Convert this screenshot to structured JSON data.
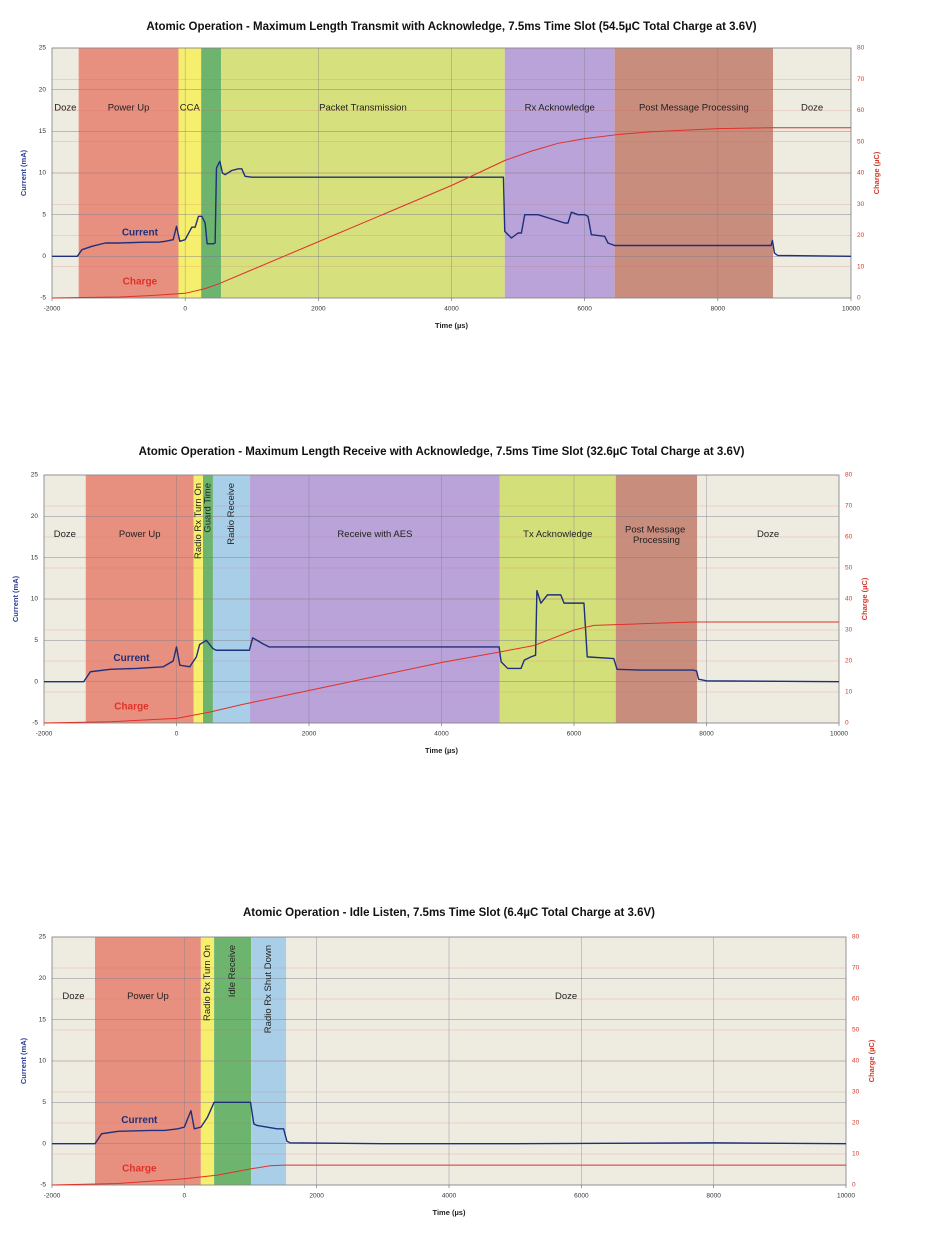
{
  "chart_data": [
    {
      "type": "line",
      "title": "Atomic Operation - Maximum Length Transmit with Acknowledge, 7.5ms Time Slot (54.5µC Total Charge at 3.6V)",
      "xlabel": "Time (µs)",
      "ylabel": "Current (mA)",
      "y2label": "Charge (µC)",
      "xlim": [
        -2000,
        10000
      ],
      "xticks": [
        -2000,
        0,
        2000,
        4000,
        6000,
        8000,
        10000
      ],
      "ylim": [
        -5,
        25
      ],
      "yticks": [
        -5,
        0,
        5,
        10,
        15,
        20,
        25
      ],
      "y2lim": [
        0,
        80
      ],
      "y2ticks": [
        0,
        10,
        20,
        30,
        40,
        50,
        60,
        70,
        80
      ],
      "grid": true,
      "regions": [
        {
          "label": "Doze",
          "start": -2000,
          "end": -1600,
          "color": "#eeebe0"
        },
        {
          "label": "Power Up",
          "start": -1600,
          "end": -100,
          "color": "#e8907f"
        },
        {
          "label": "CCA",
          "start": -100,
          "end": 240,
          "color": "#f6ef6e"
        },
        {
          "start": 240,
          "end": 540,
          "color": "#6db46e"
        },
        {
          "label": "Packet Transmission",
          "start": 540,
          "end": 4800,
          "color": "#d6e07c"
        },
        {
          "label": "Rx Acknowledge",
          "start": 4800,
          "end": 6450,
          "color": "#b9a3d9"
        },
        {
          "label": "Post Message Processing",
          "start": 6450,
          "end": 8830,
          "color": "#c98d7e"
        },
        {
          "label": "Doze",
          "start": 8830,
          "end": 10000,
          "color": "#eeebe0"
        }
      ],
      "series": [
        {
          "name": "Current",
          "color": "#1f2f7a",
          "x": [
            -2000,
            -1620,
            -1550,
            -1400,
            -1200,
            -1000,
            -600,
            -400,
            -300,
            -180,
            -130,
            -80,
            0,
            100,
            150,
            200,
            250,
            300,
            330,
            380,
            420,
            450,
            470,
            520,
            560,
            600,
            700,
            800,
            850,
            900,
            1000,
            2000,
            3000,
            4000,
            4780,
            4800,
            4900,
            5000,
            5050,
            5100,
            5300,
            5700,
            5750,
            5800,
            5900,
            6000,
            6050,
            6100,
            6300,
            6350,
            6450,
            7000,
            8000,
            8800,
            8820,
            8850,
            8900,
            10000
          ],
          "values": [
            0,
            0,
            0.8,
            1.2,
            1.6,
            1.6,
            1.7,
            1.7,
            1.8,
            2,
            3.6,
            1.8,
            2,
            3.5,
            3.5,
            4.8,
            4.8,
            4,
            1.5,
            1.5,
            1.5,
            1.6,
            10.6,
            11.4,
            10,
            9.8,
            10.3,
            10.5,
            10.5,
            9.6,
            9.5,
            9.5,
            9.5,
            9.5,
            9.5,
            3,
            2.2,
            2.8,
            2.8,
            5,
            5,
            4,
            4,
            5.3,
            5,
            5,
            4.8,
            2.6,
            2.4,
            1.6,
            1.3,
            1.3,
            1.3,
            1.3,
            1.9,
            0.4,
            0.1,
            0
          ]
        },
        {
          "name": "Charge",
          "color": "#e0302a",
          "axis": "y2",
          "x": [
            -2000,
            -1000,
            -500,
            0,
            300,
            500,
            1000,
            2000,
            3000,
            4000,
            4800,
            5200,
            5600,
            6000,
            6500,
            7000,
            8000,
            8800,
            10000
          ],
          "values": [
            0,
            0.3,
            0.8,
            1.5,
            3,
            4.5,
            9,
            18,
            27,
            36,
            44,
            47,
            49.5,
            51,
            52.3,
            53.2,
            54.2,
            54.5,
            54.5
          ]
        }
      ]
    },
    {
      "type": "line",
      "title": "Atomic Operation - Maximum Length Receive with Acknowledge, 7.5ms Time Slot (32.6µC Total Charge at 3.6V)",
      "xlabel": "Time (µs)",
      "ylabel": "Current (mA)",
      "y2label": "Charge (µC)",
      "xlim": [
        -2000,
        10000
      ],
      "xticks": [
        -2000,
        0,
        2000,
        4000,
        6000,
        8000,
        10000
      ],
      "ylim": [
        -5,
        25
      ],
      "yticks": [
        -5,
        0,
        5,
        10,
        15,
        20,
        25
      ],
      "y2lim": [
        0,
        80
      ],
      "y2ticks": [
        0,
        10,
        20,
        30,
        40,
        50,
        60,
        70,
        80
      ],
      "grid": true,
      "regions": [
        {
          "label": "Doze",
          "start": -2000,
          "end": -1370,
          "color": "#eeebe0"
        },
        {
          "label": "Power Up",
          "start": -1370,
          "end": 260,
          "color": "#e8907f"
        },
        {
          "label": "Radio Rx Turn On",
          "start": 260,
          "end": 400,
          "color": "#f6ef6e"
        },
        {
          "label": "Guard Time",
          "start": 400,
          "end": 550,
          "color": "#6db46e"
        },
        {
          "label": "Radio Receive",
          "start": 550,
          "end": 1110,
          "color": "#a9cfe8"
        },
        {
          "label": "Receive with AES",
          "start": 1110,
          "end": 4880,
          "color": "#b9a3d9"
        },
        {
          "label": "Tx Acknowledge",
          "start": 4880,
          "end": 6630,
          "color": "#d3e07a"
        },
        {
          "label": "Post Message Processing",
          "start": 6630,
          "end": 7860,
          "color": "#c98d7e"
        },
        {
          "label": "Doze",
          "start": 7860,
          "end": 10000,
          "color": "#eeebe0"
        }
      ],
      "series": [
        {
          "name": "Current",
          "color": "#1f2f7a",
          "x": [
            -2000,
            -1400,
            -1300,
            -1000,
            -600,
            -200,
            -50,
            0,
            50,
            200,
            300,
            350,
            450,
            550,
            600,
            1100,
            1150,
            1300,
            1400,
            2000,
            3000,
            4000,
            4870,
            4900,
            5000,
            5200,
            5250,
            5350,
            5420,
            5440,
            5500,
            5600,
            5800,
            5850,
            6150,
            6200,
            6600,
            6650,
            7000,
            7800,
            7850,
            7880,
            8000,
            10000
          ],
          "values": [
            0,
            0,
            1.2,
            1.5,
            1.6,
            1.8,
            2.5,
            4.2,
            2,
            1.8,
            3,
            4.5,
            5,
            4,
            3.8,
            3.8,
            5.3,
            4.6,
            4.2,
            4.2,
            4.2,
            4.2,
            4.2,
            2.4,
            1.6,
            1.6,
            2.6,
            3,
            3.2,
            11,
            9.5,
            10.5,
            10.5,
            9.5,
            9.5,
            3,
            2.8,
            1.5,
            1.4,
            1.4,
            1.3,
            0.3,
            0.1,
            0
          ]
        },
        {
          "name": "Charge",
          "color": "#e0302a",
          "axis": "y2",
          "x": [
            -2000,
            -1000,
            0,
            500,
            1000,
            2000,
            3000,
            4000,
            4900,
            5400,
            6000,
            6300,
            7000,
            7800,
            10000
          ],
          "values": [
            0,
            0.4,
            1.5,
            3.5,
            6,
            10.5,
            15,
            19.5,
            23,
            25,
            30,
            31.5,
            32,
            32.6,
            32.6
          ]
        }
      ]
    },
    {
      "type": "line",
      "title": "Atomic Operation - Idle Listen, 7.5ms Time Slot (6.4µC Total Charge at 3.6V)",
      "xlabel": "Time (µs)",
      "ylabel": "Current (mA)",
      "y2label": "Charge (µC)",
      "xlim": [
        -2000,
        10000
      ],
      "xticks": [
        -2000,
        0,
        2000,
        4000,
        6000,
        8000,
        10000
      ],
      "ylim": [
        -5,
        25
      ],
      "yticks": [
        -5,
        0,
        5,
        10,
        15,
        20,
        25
      ],
      "y2lim": [
        0,
        80
      ],
      "y2ticks": [
        0,
        10,
        20,
        30,
        40,
        50,
        60,
        70,
        80
      ],
      "grid": true,
      "regions": [
        {
          "label": "Doze",
          "start": -2000,
          "end": -1350,
          "color": "#eeebe0"
        },
        {
          "label": "Power Up",
          "start": -1350,
          "end": 250,
          "color": "#e8907f"
        },
        {
          "label": "Radio Rx Turn On",
          "start": 250,
          "end": 450,
          "color": "#f6ef6e"
        },
        {
          "label": "Idle Receive",
          "start": 450,
          "end": 1010,
          "color": "#6db46e"
        },
        {
          "label": "Radio Rx Shut Down",
          "start": 1010,
          "end": 1540,
          "color": "#a9cfe8"
        },
        {
          "label": "Doze",
          "start": 1540,
          "end": 10000,
          "color": "#eeebe0"
        }
      ],
      "series": [
        {
          "name": "Current",
          "color": "#1f2f7a",
          "x": [
            -2000,
            -1350,
            -1250,
            -1000,
            -500,
            -300,
            -100,
            0,
            100,
            150,
            250,
            350,
            450,
            1000,
            1050,
            1100,
            1400,
            1500,
            1550,
            1600,
            3000,
            5000,
            8000,
            10000
          ],
          "values": [
            0,
            0,
            1.2,
            1.5,
            1.6,
            1.6,
            1.8,
            2,
            4,
            1.8,
            2,
            3.2,
            5,
            5,
            2.4,
            2.2,
            1.8,
            1.8,
            0.3,
            0.1,
            0,
            0,
            0.1,
            0
          ]
        },
        {
          "name": "Charge",
          "color": "#e0302a",
          "axis": "y2",
          "x": [
            -2000,
            -1000,
            0,
            500,
            1000,
            1300,
            1500,
            10000
          ],
          "values": [
            0,
            0.5,
            2,
            3.2,
            5.2,
            6.2,
            6.4,
            6.4
          ]
        }
      ]
    }
  ]
}
